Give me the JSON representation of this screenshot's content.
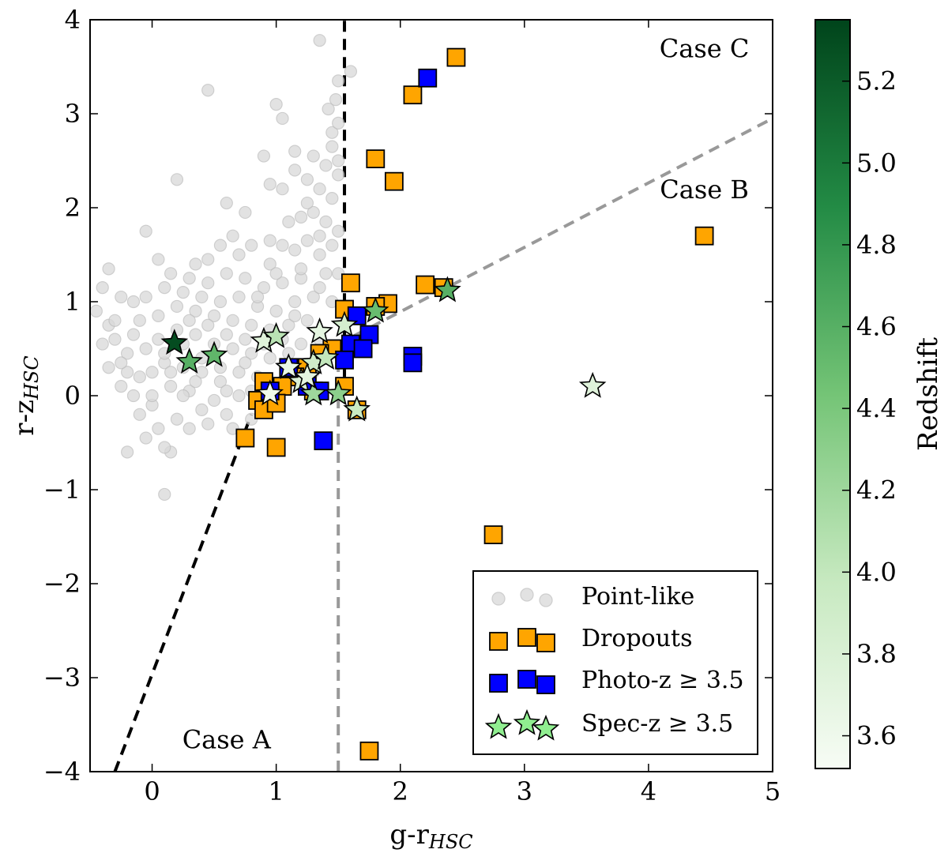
{
  "chart_data": {
    "type": "scatter",
    "xlabel": "g-r",
    "xlabel_sub": "HSC",
    "ylabel": "r-z",
    "ylabel_sub": "HSC",
    "xlim": [
      -0.5,
      5
    ],
    "ylim": [
      -4,
      4
    ],
    "xticks": [
      0,
      1,
      2,
      3,
      4,
      5
    ],
    "yticks": [
      -4,
      -3,
      -2,
      -1,
      0,
      1,
      2,
      3,
      4
    ],
    "grid": false,
    "legend_position": "lower right",
    "annotations": [
      {
        "text": "Case A",
        "x": 0.6,
        "y": -3.75
      },
      {
        "text": "Case B",
        "x": 4.45,
        "y": 2.1
      },
      {
        "text": "Case C",
        "x": 4.45,
        "y": 3.6
      }
    ],
    "lines": [
      {
        "name": "case-a-boundary",
        "color": "#000000",
        "style": "dashed",
        "points": [
          [
            -0.3,
            -4.0
          ],
          [
            0.8,
            -0.2
          ]
        ]
      },
      {
        "name": "case-c-boundary",
        "color": "#000000",
        "style": "dashed",
        "points": [
          [
            1.55,
            0.2
          ],
          [
            1.55,
            4.0
          ]
        ]
      },
      {
        "name": "case-b-vertical",
        "color": "#999999",
        "style": "dashed",
        "points": [
          [
            1.5,
            -4.0
          ],
          [
            1.5,
            0.55
          ]
        ]
      },
      {
        "name": "case-b-slope",
        "color": "#999999",
        "style": "dashed",
        "points": [
          [
            1.5,
            0.55
          ],
          [
            5.0,
            2.95
          ]
        ]
      }
    ],
    "colorbar": {
      "label": "Redshift",
      "min": 3.52,
      "max": 5.35,
      "ticks": [
        3.6,
        3.8,
        4.0,
        4.2,
        4.4,
        4.6,
        4.8,
        5.0,
        5.2
      ],
      "colormap": "Greens",
      "low_color": "#f7fcf5",
      "high_color": "#00441b"
    },
    "series": [
      {
        "name": "Point-like",
        "marker": "circle",
        "color": "#d9d9d9",
        "edge": "#bdbdbd",
        "points": [
          [
            -0.35,
            1.35
          ],
          [
            -0.4,
            1.15
          ],
          [
            -0.25,
            1.05
          ],
          [
            -0.45,
            0.9
          ],
          [
            -0.35,
            0.75
          ],
          [
            -0.3,
            0.6
          ],
          [
            -0.4,
            0.55
          ],
          [
            -0.2,
            0.45
          ],
          [
            -0.35,
            0.3
          ],
          [
            -0.2,
            0.25
          ],
          [
            -0.25,
            0.1
          ],
          [
            -0.1,
            0.2
          ],
          [
            -0.15,
            0.0
          ],
          [
            0.0,
            -0.1
          ],
          [
            -0.1,
            -0.2
          ],
          [
            0.05,
            -0.35
          ],
          [
            -0.05,
            -0.45
          ],
          [
            -0.2,
            -0.6
          ],
          [
            0.15,
            -0.6
          ],
          [
            0.1,
            -1.05
          ],
          [
            0.1,
            -0.55
          ],
          [
            0.2,
            -0.25
          ],
          [
            0.3,
            -0.35
          ],
          [
            0.45,
            -0.3
          ],
          [
            0.6,
            -0.2
          ],
          [
            0.5,
            -0.05
          ],
          [
            0.7,
            0.0
          ],
          [
            0.3,
            0.05
          ],
          [
            0.15,
            0.1
          ],
          [
            0.0,
            0.25
          ],
          [
            0.1,
            0.35
          ],
          [
            0.25,
            0.3
          ],
          [
            0.4,
            0.25
          ],
          [
            0.55,
            0.3
          ],
          [
            0.7,
            0.25
          ],
          [
            0.85,
            0.2
          ],
          [
            -0.05,
            0.5
          ],
          [
            0.05,
            0.6
          ],
          [
            0.2,
            0.7
          ],
          [
            0.35,
            0.65
          ],
          [
            0.5,
            0.55
          ],
          [
            0.65,
            0.5
          ],
          [
            0.8,
            0.45
          ],
          [
            0.95,
            0.4
          ],
          [
            1.1,
            0.45
          ],
          [
            -0.1,
            0.8
          ],
          [
            0.05,
            0.85
          ],
          [
            0.2,
            0.95
          ],
          [
            0.35,
            0.9
          ],
          [
            0.5,
            0.85
          ],
          [
            0.65,
            0.8
          ],
          [
            0.8,
            0.75
          ],
          [
            0.95,
            0.7
          ],
          [
            1.1,
            0.75
          ],
          [
            1.25,
            0.8
          ],
          [
            -0.05,
            1.05
          ],
          [
            0.1,
            1.15
          ],
          [
            0.25,
            1.1
          ],
          [
            0.4,
            1.05
          ],
          [
            0.55,
            1.0
          ],
          [
            0.7,
            1.05
          ],
          [
            0.85,
            0.95
          ],
          [
            1.0,
            0.9
          ],
          [
            1.15,
            1.0
          ],
          [
            1.3,
            1.05
          ],
          [
            0.15,
            1.3
          ],
          [
            0.3,
            1.25
          ],
          [
            0.45,
            1.2
          ],
          [
            0.6,
            1.3
          ],
          [
            0.75,
            1.25
          ],
          [
            0.9,
            1.15
          ],
          [
            1.05,
            1.2
          ],
          [
            1.2,
            1.25
          ],
          [
            1.35,
            1.15
          ],
          [
            1.45,
            1.0
          ],
          [
            0.05,
            1.45
          ],
          [
            0.45,
            1.45
          ],
          [
            0.7,
            1.5
          ],
          [
            0.95,
            1.4
          ],
          [
            1.2,
            1.35
          ],
          [
            1.4,
            1.3
          ],
          [
            -0.05,
            1.75
          ],
          [
            0.65,
            1.7
          ],
          [
            0.8,
            1.6
          ],
          [
            0.95,
            1.65
          ],
          [
            1.05,
            1.6
          ],
          [
            1.15,
            1.55
          ],
          [
            1.25,
            1.65
          ],
          [
            1.35,
            1.5
          ],
          [
            1.45,
            1.6
          ],
          [
            0.75,
            1.95
          ],
          [
            1.1,
            1.85
          ],
          [
            1.2,
            1.9
          ],
          [
            1.3,
            1.95
          ],
          [
            1.4,
            1.85
          ],
          [
            1.5,
            1.75
          ],
          [
            0.2,
            2.3
          ],
          [
            0.95,
            2.25
          ],
          [
            1.05,
            2.2
          ],
          [
            1.15,
            2.4
          ],
          [
            1.25,
            2.3
          ],
          [
            1.35,
            2.2
          ],
          [
            1.45,
            2.1
          ],
          [
            1.5,
            2.35
          ],
          [
            1.4,
            2.45
          ],
          [
            1.3,
            2.55
          ],
          [
            1.45,
            2.65
          ],
          [
            1.5,
            2.5
          ],
          [
            1.45,
            2.8
          ],
          [
            1.5,
            2.9
          ],
          [
            1.42,
            3.05
          ],
          [
            1.48,
            3.15
          ],
          [
            1.5,
            3.35
          ],
          [
            1.6,
            3.45
          ],
          [
            1.35,
            3.78
          ],
          [
            0.45,
            3.25
          ],
          [
            1.0,
            3.1
          ],
          [
            1.05,
            2.95
          ],
          [
            0.9,
            2.55
          ],
          [
            0.6,
            2.05
          ],
          [
            0.95,
            0.1
          ],
          [
            1.05,
            0.15
          ],
          [
            1.2,
            0.3
          ],
          [
            1.3,
            0.25
          ],
          [
            1.4,
            0.45
          ],
          [
            0.8,
            0.05
          ],
          [
            0.55,
            0.15
          ],
          [
            0.4,
            0.4
          ],
          [
            0.25,
            0.55
          ],
          [
            0.1,
            0.45
          ],
          [
            -0.15,
            0.65
          ],
          [
            0.6,
            0.65
          ],
          [
            0.75,
            0.6
          ],
          [
            0.9,
            0.55
          ],
          [
            1.05,
            0.6
          ],
          [
            1.2,
            0.55
          ],
          [
            1.35,
            0.6
          ],
          [
            0.3,
            0.8
          ],
          [
            0.45,
            0.75
          ],
          [
            1.15,
            0.85
          ],
          [
            0.85,
            1.05
          ],
          [
            1.0,
            1.3
          ],
          [
            0.55,
            1.6
          ],
          [
            0.35,
            1.4
          ],
          [
            0.25,
            0.0
          ],
          [
            0.4,
            -0.15
          ],
          [
            0.65,
            -0.35
          ],
          [
            0.8,
            -0.25
          ],
          [
            0.0,
            0.0
          ],
          [
            0.15,
            0.25
          ],
          [
            0.35,
            0.15
          ],
          [
            0.6,
            0.05
          ],
          [
            0.75,
            0.35
          ],
          [
            -0.25,
            0.35
          ],
          [
            -0.3,
            0.8
          ],
          [
            -0.15,
            1.0
          ],
          [
            1.5,
            1.3
          ],
          [
            1.35,
            1.7
          ],
          [
            1.25,
            2.05
          ],
          [
            1.15,
            2.6
          ]
        ]
      },
      {
        "name": "Dropouts",
        "marker": "square",
        "color": "#ffa500",
        "edge": "#000000",
        "points": [
          [
            2.45,
            3.6
          ],
          [
            2.1,
            3.2
          ],
          [
            1.8,
            2.52
          ],
          [
            1.95,
            2.28
          ],
          [
            4.45,
            1.7
          ],
          [
            1.6,
            1.2
          ],
          [
            2.2,
            1.18
          ],
          [
            2.35,
            1.15
          ],
          [
            1.55,
            0.92
          ],
          [
            1.9,
            0.98
          ],
          [
            1.8,
            0.95
          ],
          [
            1.45,
            0.5
          ],
          [
            1.35,
            0.45
          ],
          [
            1.25,
            0.3
          ],
          [
            1.15,
            0.2
          ],
          [
            1.05,
            0.1
          ],
          [
            0.95,
            0.0
          ],
          [
            0.9,
            0.15
          ],
          [
            0.85,
            -0.05
          ],
          [
            0.9,
            -0.15
          ],
          [
            1.0,
            -0.08
          ],
          [
            1.3,
            0.05
          ],
          [
            1.55,
            0.1
          ],
          [
            1.65,
            -0.15
          ],
          [
            0.75,
            -0.45
          ],
          [
            1.0,
            -0.55
          ],
          [
            2.75,
            -1.48
          ],
          [
            1.75,
            -3.78
          ]
        ]
      },
      {
        "name": "Photo-z ≥ 3.5",
        "marker": "square",
        "color": "#0000ff",
        "edge": "#000000",
        "points": [
          [
            2.22,
            3.38
          ],
          [
            1.65,
            0.85
          ],
          [
            1.6,
            0.55
          ],
          [
            1.75,
            0.65
          ],
          [
            1.7,
            0.5
          ],
          [
            1.55,
            0.38
          ],
          [
            2.1,
            0.42
          ],
          [
            2.1,
            0.35
          ],
          [
            1.38,
            -0.48
          ],
          [
            0.95,
            0.05
          ],
          [
            1.1,
            0.3
          ],
          [
            1.25,
            0.1
          ],
          [
            1.35,
            0.05
          ]
        ]
      },
      {
        "name": "Spec-z ≥ 3.5",
        "marker": "star",
        "color": "#90ee90",
        "edge": "#000000",
        "points": [
          {
            "x": 0.18,
            "y": 0.56,
            "z": 5.3
          },
          {
            "x": 0.3,
            "y": 0.36,
            "z": 4.6
          },
          {
            "x": 0.5,
            "y": 0.43,
            "z": 4.55
          },
          {
            "x": 0.9,
            "y": 0.58,
            "z": 3.75
          },
          {
            "x": 1.0,
            "y": 0.63,
            "z": 4.05
          },
          {
            "x": 1.35,
            "y": 0.68,
            "z": 3.7
          },
          {
            "x": 1.55,
            "y": 0.75,
            "z": 3.85
          },
          {
            "x": 1.8,
            "y": 0.9,
            "z": 4.5
          },
          {
            "x": 2.38,
            "y": 1.12,
            "z": 4.6
          },
          {
            "x": 3.55,
            "y": 0.1,
            "z": 3.75
          },
          {
            "x": 0.95,
            "y": 0.02,
            "z": 3.6
          },
          {
            "x": 1.1,
            "y": 0.3,
            "z": 3.65
          },
          {
            "x": 1.2,
            "y": 0.15,
            "z": 3.8
          },
          {
            "x": 1.3,
            "y": 0.35,
            "z": 3.9
          },
          {
            "x": 1.4,
            "y": 0.4,
            "z": 4.0
          },
          {
            "x": 1.3,
            "y": 0.02,
            "z": 4.2
          },
          {
            "x": 1.5,
            "y": 0.02,
            "z": 4.3
          },
          {
            "x": 1.65,
            "y": -0.15,
            "z": 3.95
          },
          {
            "x": 1.25,
            "y": 0.2,
            "z": 3.7
          }
        ]
      }
    ]
  }
}
